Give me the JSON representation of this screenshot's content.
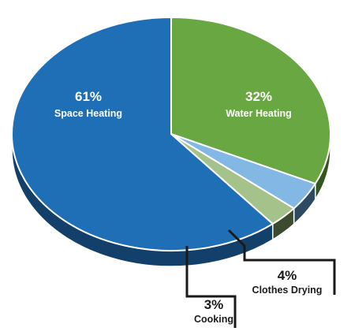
{
  "chart_data": {
    "type": "pie",
    "style": "3d",
    "slices": [
      {
        "label": "Space Heating",
        "value": 61,
        "value_label": "61%",
        "color": "#1f6fb6",
        "side_color": "#13406a",
        "label_position": "inside",
        "label_color": "#ffffff"
      },
      {
        "label": "Water Heating",
        "value": 32,
        "value_label": "32%",
        "color": "#69a743",
        "side_color": "#34561f",
        "label_position": "inside",
        "label_color": "#ffffff"
      },
      {
        "label": "Clothes Drying",
        "value": 4,
        "value_label": "4%",
        "color": "#82b8e3",
        "side_color": "#2e4a60",
        "label_position": "callout",
        "label_color": "#1a1a1a"
      },
      {
        "label": "Cooking",
        "value": 3,
        "value_label": "3%",
        "color": "#a4c28a",
        "side_color": "#3c4a30",
        "label_position": "callout",
        "label_color": "#1a1a1a"
      }
    ]
  }
}
